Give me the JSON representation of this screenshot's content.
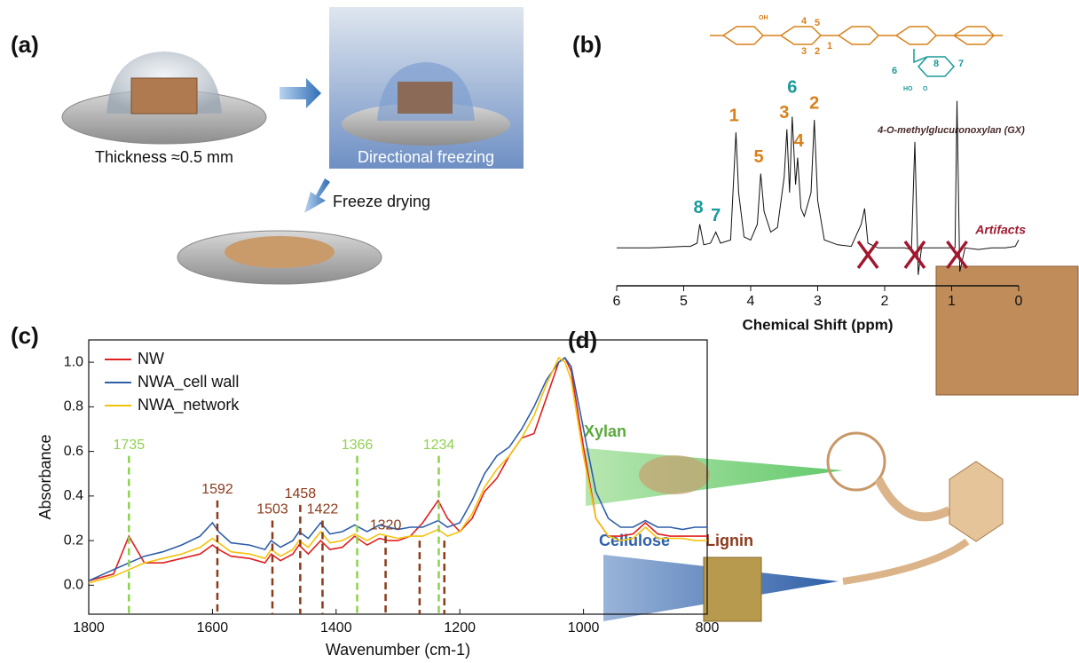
{
  "panel_a": {
    "label": "(a)",
    "thickness": "Thickness ≈0.5 mm",
    "freezing": "Directional freezing",
    "drying": "Freeze drying"
  },
  "panel_b": {
    "label": "(b)",
    "structure": {
      "name": "4-O-methylglucuronoxylan (GX)",
      "xylan_numbers": [
        "4",
        "5",
        "3",
        "2",
        "1"
      ],
      "glca_numbers": [
        "6",
        "8",
        "7"
      ],
      "oh": "OH",
      "ho": "HO",
      "o": "O"
    }
  },
  "panel_c": {
    "label": "(c)"
  },
  "panel_d": {
    "label": "(d)",
    "xylan": "Xylan",
    "cellulose": "Cellulose",
    "lignin": "Lignin"
  },
  "chart_data": [
    {
      "type": "line",
      "x_label": "Chemical Shift (ppm)",
      "color": "#111111",
      "xlim": [
        6,
        0
      ],
      "xticks": [
        6,
        5,
        4,
        3,
        2,
        1,
        0
      ],
      "ylim": [
        -15,
        100
      ],
      "x": [
        6.0,
        5.5,
        5.0,
        4.9,
        4.8,
        4.76,
        4.7,
        4.6,
        4.52,
        4.45,
        4.3,
        4.22,
        4.18,
        4.1,
        4.0,
        3.9,
        3.85,
        3.8,
        3.7,
        3.6,
        3.5,
        3.46,
        3.42,
        3.38,
        3.33,
        3.3,
        3.25,
        3.2,
        3.1,
        3.05,
        3.0,
        2.9,
        2.7,
        2.5,
        2.35,
        2.3,
        2.25,
        2.1,
        1.9,
        1.7,
        1.6,
        1.55,
        1.5,
        1.45,
        1.3,
        1.1,
        0.95,
        0.92,
        0.88,
        0.8,
        0.6,
        0.4,
        0.2,
        0.05,
        0.0
      ],
      "values": [
        5,
        5,
        6,
        6,
        8,
        20,
        7,
        8,
        15,
        8,
        10,
        78,
        40,
        12,
        10,
        20,
        52,
        28,
        15,
        18,
        50,
        80,
        40,
        88,
        45,
        62,
        30,
        25,
        40,
        86,
        35,
        10,
        7,
        6,
        20,
        30,
        8,
        5,
        5,
        5,
        4,
        72,
        -12,
        5,
        5,
        5,
        5,
        98,
        -10,
        5,
        4,
        5,
        5,
        6,
        10
      ],
      "peak_labels": [
        {
          "text": "8",
          "x": 4.78,
          "y": 30,
          "color": "#1a9a9a"
        },
        {
          "text": "7",
          "x": 4.52,
          "y": 25,
          "color": "#1a9a9a"
        },
        {
          "text": "1",
          "x": 4.25,
          "y": 88,
          "color": "#d9801a"
        },
        {
          "text": "5",
          "x": 3.88,
          "y": 62,
          "color": "#d9801a"
        },
        {
          "text": "3",
          "x": 3.5,
          "y": 90,
          "color": "#d9801a"
        },
        {
          "text": "6",
          "x": 3.38,
          "y": 106,
          "color": "#1a9a9a"
        },
        {
          "text": "4",
          "x": 3.28,
          "y": 72,
          "color": "#d9801a"
        },
        {
          "text": "2",
          "x": 3.05,
          "y": 96,
          "color": "#d9801a"
        }
      ],
      "artifacts": {
        "label": "Artifacts",
        "color": "#a0182e",
        "x": [
          2.25,
          1.55,
          0.92
        ]
      }
    },
    {
      "type": "line",
      "x_label": "Wavenumber (cm-1)",
      "y_label": "Absorbance",
      "xlim": [
        1800,
        800
      ],
      "xticks": [
        1800,
        1600,
        1400,
        1200,
        1000,
        800
      ],
      "ylim": [
        -0.13,
        1.1
      ],
      "yticks": [
        {
          "value": 0,
          "label": "0.0"
        },
        0.2,
        0.4,
        0.6,
        0.8,
        {
          "value": 1,
          "label": "1.0"
        }
      ],
      "x": [
        1800,
        1760,
        1735,
        1710,
        1680,
        1650,
        1620,
        1600,
        1590,
        1570,
        1540,
        1515,
        1505,
        1490,
        1470,
        1460,
        1445,
        1425,
        1410,
        1390,
        1370,
        1350,
        1330,
        1315,
        1300,
        1280,
        1260,
        1235,
        1220,
        1200,
        1180,
        1160,
        1140,
        1120,
        1100,
        1080,
        1060,
        1040,
        1030,
        1020,
        1000,
        980,
        960,
        940,
        920,
        900,
        880,
        860,
        840,
        820,
        800
      ],
      "series": [
        {
          "name": "NW",
          "color": "#e02020",
          "values": [
            0.02,
            0.05,
            0.22,
            0.1,
            0.1,
            0.12,
            0.14,
            0.18,
            0.16,
            0.13,
            0.12,
            0.1,
            0.14,
            0.11,
            0.14,
            0.18,
            0.14,
            0.2,
            0.16,
            0.17,
            0.22,
            0.18,
            0.21,
            0.2,
            0.2,
            0.22,
            0.28,
            0.38,
            0.3,
            0.24,
            0.3,
            0.42,
            0.48,
            0.58,
            0.66,
            0.68,
            0.84,
            1.0,
            1.02,
            0.96,
            0.62,
            0.3,
            0.22,
            0.22,
            0.23,
            0.28,
            0.23,
            0.22,
            0.22,
            0.22,
            0.22
          ]
        },
        {
          "name": "NWA_cell wall",
          "color": "#2f5fa8",
          "values": [
            0.02,
            0.07,
            0.1,
            0.13,
            0.15,
            0.18,
            0.22,
            0.28,
            0.24,
            0.19,
            0.18,
            0.16,
            0.2,
            0.17,
            0.2,
            0.24,
            0.21,
            0.28,
            0.23,
            0.24,
            0.27,
            0.24,
            0.27,
            0.26,
            0.25,
            0.26,
            0.26,
            0.29,
            0.26,
            0.28,
            0.38,
            0.5,
            0.58,
            0.62,
            0.7,
            0.8,
            0.92,
            1.0,
            1.02,
            0.98,
            0.7,
            0.42,
            0.3,
            0.26,
            0.26,
            0.29,
            0.26,
            0.26,
            0.25,
            0.26,
            0.26
          ]
        },
        {
          "name": "NWA_network",
          "color": "#f4c20d",
          "values": [
            0.01,
            0.04,
            0.07,
            0.1,
            0.12,
            0.14,
            0.17,
            0.21,
            0.19,
            0.15,
            0.14,
            0.12,
            0.16,
            0.13,
            0.16,
            0.2,
            0.17,
            0.24,
            0.19,
            0.2,
            0.23,
            0.2,
            0.23,
            0.22,
            0.21,
            0.22,
            0.22,
            0.25,
            0.22,
            0.24,
            0.32,
            0.44,
            0.52,
            0.58,
            0.66,
            0.76,
            0.9,
            1.02,
            1.0,
            0.92,
            0.58,
            0.3,
            0.22,
            0.2,
            0.21,
            0.26,
            0.21,
            0.21,
            0.21,
            0.2,
            0.2
          ]
        }
      ],
      "bands": [
        {
          "x": 1735,
          "top": 0.58,
          "color": "#8fd14f"
        },
        {
          "x": 1592,
          "top": 0.38,
          "color": "#8b3a1a"
        },
        {
          "x": 1503,
          "top": 0.29,
          "color": "#8b3a1a"
        },
        {
          "x": 1458,
          "top": 0.36,
          "color": "#8b3a1a"
        },
        {
          "x": 1422,
          "top": 0.29,
          "color": "#8b3a1a"
        },
        {
          "x": 1366,
          "top": 0.58,
          "color": "#8fd14f"
        },
        {
          "x": 1320,
          "top": 0.22,
          "color": "#8b3a1a"
        },
        {
          "x": 1234,
          "top": 0.58,
          "color": "#8fd14f"
        }
      ],
      "extra_bands": [
        {
          "x": 1265,
          "top": 0.2,
          "color": "#8b3a1a"
        },
        {
          "x": 1225,
          "top": 0.2,
          "color": "#8b3a1a"
        }
      ]
    }
  ]
}
